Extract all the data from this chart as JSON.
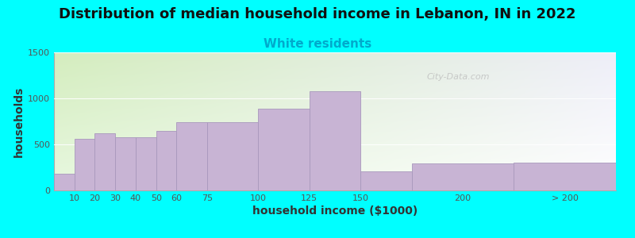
{
  "title": "Distribution of median household income in Lebanon, IN in 2022",
  "subtitle": "White residents",
  "xlabel": "household income ($1000)",
  "ylabel": "households",
  "background_color": "#00FFFF",
  "plot_bg_color_topleft": "#d4edbe",
  "plot_bg_color_right": "#eeeef8",
  "bar_color": "#c8b4d4",
  "bar_edge_color": "#a898bc",
  "ylim": [
    0,
    1500
  ],
  "yticks": [
    0,
    500,
    1000,
    1500
  ],
  "bar_lefts": [
    0,
    10,
    20,
    30,
    40,
    50,
    60,
    75,
    100,
    125,
    150,
    175,
    225
  ],
  "bar_widths": [
    10,
    10,
    10,
    10,
    10,
    10,
    15,
    25,
    25,
    25,
    25,
    50,
    50
  ],
  "bar_heights": [
    185,
    560,
    620,
    575,
    580,
    650,
    740,
    740,
    890,
    1075,
    210,
    295,
    305
  ],
  "tick_positions": [
    10,
    20,
    30,
    40,
    50,
    60,
    75,
    100,
    125,
    150,
    200,
    250
  ],
  "tick_labels": [
    "10",
    "20",
    "30",
    "40",
    "50",
    "60",
    "75",
    "100",
    "125",
    "150",
    "200",
    "> 200"
  ],
  "xlim": [
    0,
    275
  ],
  "title_fontsize": 13,
  "subtitle_fontsize": 11,
  "subtitle_color": "#00AACC",
  "axis_label_fontsize": 10,
  "tick_fontsize": 8,
  "watermark": "City-Data.com"
}
